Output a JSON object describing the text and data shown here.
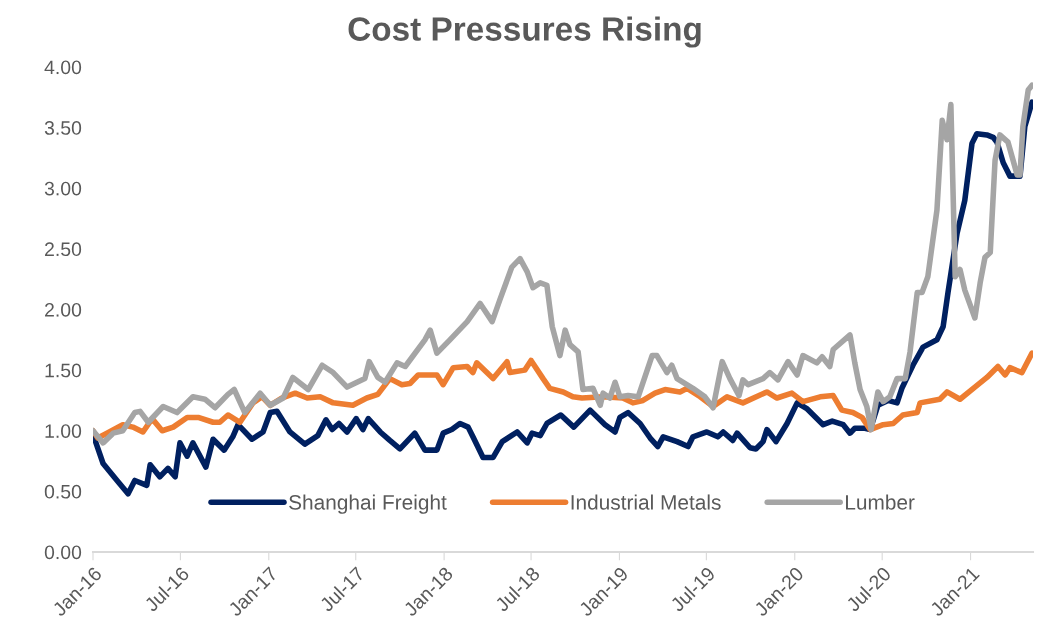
{
  "chart_data": {
    "type": "line",
    "title": "Cost Pressures Rising",
    "xlim": [
      "2016-01-01",
      "2021-05-11"
    ],
    "xticks": [
      {
        "value": "2016-01-01",
        "label": "Jan-16"
      },
      {
        "value": "2016-07-01",
        "label": "Jul-16"
      },
      {
        "value": "2017-01-01",
        "label": "Jan-17"
      },
      {
        "value": "2017-07-01",
        "label": "Jul-17"
      },
      {
        "value": "2018-01-01",
        "label": "Jan-18"
      },
      {
        "value": "2018-07-01",
        "label": "Jul-18"
      },
      {
        "value": "2019-01-01",
        "label": "Jan-19"
      },
      {
        "value": "2019-07-01",
        "label": "Jul-19"
      },
      {
        "value": "2020-01-01",
        "label": "Jan-20"
      },
      {
        "value": "2020-07-01",
        "label": "Jul-20"
      },
      {
        "value": "2021-01-01",
        "label": "Jan-21"
      }
    ],
    "ylim": [
      0,
      4
    ],
    "yticks": [
      {
        "value": 0,
        "label": "0.00"
      },
      {
        "value": 0.5,
        "label": "0.50"
      },
      {
        "value": 1,
        "label": "1.00"
      },
      {
        "value": 1.5,
        "label": "1.50"
      },
      {
        "value": 2,
        "label": "2.00"
      },
      {
        "value": 2.5,
        "label": "2.50"
      },
      {
        "value": 3,
        "label": "3.00"
      },
      {
        "value": 3.5,
        "label": "3.50"
      },
      {
        "value": 4,
        "label": "4.00"
      }
    ],
    "grid": false,
    "legend": "bottom",
    "marker": "none",
    "line_style": "solid",
    "series": [
      {
        "name": "Shanghai Freight",
        "color": "#002060",
        "x": [
          "2016-01-01",
          "2016-01-22",
          "2016-02-20",
          "2016-03-14",
          "2016-03-28",
          "2016-04-22",
          "2016-04-29",
          "2016-05-19",
          "2016-06-05",
          "2016-06-20",
          "2016-06-30",
          "2016-07-15",
          "2016-07-27",
          "2016-08-23",
          "2016-09-07",
          "2016-09-30",
          "2016-10-18",
          "2016-10-29",
          "2016-11-27",
          "2016-12-20",
          "2017-01-04",
          "2017-01-18",
          "2017-02-14",
          "2017-03-17",
          "2017-04-13",
          "2017-04-30",
          "2017-05-13",
          "2017-05-27",
          "2017-06-13",
          "2017-07-02",
          "2017-07-16",
          "2017-07-27",
          "2017-08-21",
          "2017-09-10",
          "2017-10-01",
          "2017-11-01",
          "2017-11-22",
          "2017-12-17",
          "2017-12-30",
          "2018-01-17",
          "2018-02-03",
          "2018-02-20",
          "2018-03-02",
          "2018-03-23",
          "2018-04-13",
          "2018-05-02",
          "2018-06-02",
          "2018-06-23",
          "2018-07-03",
          "2018-07-20",
          "2018-08-03",
          "2018-09-01",
          "2018-09-28",
          "2018-11-01",
          "2018-12-02",
          "2018-12-23",
          "2019-01-02",
          "2019-01-19",
          "2019-02-13",
          "2019-03-06",
          "2019-03-22",
          "2019-04-02",
          "2019-05-01",
          "2019-05-24",
          "2019-06-03",
          "2019-07-02",
          "2019-07-25",
          "2019-08-05",
          "2019-08-25",
          "2019-09-03",
          "2019-09-30",
          "2019-10-12",
          "2019-10-27",
          "2019-11-04",
          "2019-11-23",
          "2019-12-16",
          "2020-01-06",
          "2020-01-27",
          "2020-02-29",
          "2020-03-19",
          "2020-04-11",
          "2020-04-25",
          "2020-05-05",
          "2020-05-26",
          "2020-06-06",
          "2020-06-22",
          "2020-07-13",
          "2020-08-01",
          "2020-08-11",
          "2020-09-03",
          "2020-09-24",
          "2020-10-23",
          "2020-11-05",
          "2020-11-15",
          "2020-12-04",
          "2020-12-20",
          "2021-01-04",
          "2021-01-14",
          "2021-02-04",
          "2021-02-17",
          "2021-02-25",
          "2021-03-10",
          "2021-03-24",
          "2021-04-14",
          "2021-04-24",
          "2021-05-09"
        ],
        "values": [
          0.97,
          0.73,
          0.59,
          0.48,
          0.59,
          0.55,
          0.72,
          0.62,
          0.69,
          0.62,
          0.9,
          0.79,
          0.9,
          0.7,
          0.93,
          0.84,
          0.95,
          1.05,
          0.93,
          0.99,
          1.15,
          1.16,
          0.99,
          0.89,
          0.96,
          1.09,
          1.01,
          1.06,
          0.99,
          1.1,
          1.01,
          1.1,
          0.99,
          0.92,
          0.85,
          0.98,
          0.84,
          0.84,
          0.98,
          1.01,
          1.06,
          1.03,
          0.95,
          0.78,
          0.78,
          0.91,
          0.99,
          0.9,
          0.98,
          0.96,
          1.06,
          1.13,
          1.03,
          1.17,
          1.05,
          0.99,
          1.11,
          1.15,
          1.06,
          0.94,
          0.87,
          0.95,
          0.91,
          0.87,
          0.95,
          0.99,
          0.95,
          0.99,
          0.92,
          0.98,
          0.86,
          0.85,
          0.91,
          1.01,
          0.91,
          1.06,
          1.23,
          1.18,
          1.05,
          1.08,
          1.05,
          0.98,
          1.02,
          1.02,
          1.01,
          1.21,
          1.25,
          1.23,
          1.35,
          1.54,
          1.69,
          1.75,
          1.86,
          2.14,
          2.63,
          2.9,
          3.37,
          3.45,
          3.44,
          3.42,
          3.38,
          3.21,
          3.1,
          3.1,
          3.51,
          3.71
        ]
      },
      {
        "name": "Industrial Metals",
        "color": "#ed7d31",
        "x": [
          "2016-01-01",
          "2016-01-11",
          "2016-01-30",
          "2016-03-03",
          "2016-03-24",
          "2016-04-14",
          "2016-05-03",
          "2016-05-24",
          "2016-06-16",
          "2016-07-15",
          "2016-08-07",
          "2016-09-07",
          "2016-09-21",
          "2016-10-08",
          "2016-11-02",
          "2016-11-29",
          "2016-12-18",
          "2017-01-04",
          "2017-01-28",
          "2017-02-25",
          "2017-03-22",
          "2017-04-18",
          "2017-05-15",
          "2017-06-25",
          "2017-07-24",
          "2017-08-16",
          "2017-09-10",
          "2017-10-05",
          "2017-10-22",
          "2017-11-08",
          "2017-12-17",
          "2017-12-30",
          "2018-01-20",
          "2018-02-18",
          "2018-03-02",
          "2018-03-10",
          "2018-04-13",
          "2018-05-12",
          "2018-05-18",
          "2018-06-18",
          "2018-07-01",
          "2018-07-26",
          "2018-08-09",
          "2018-09-06",
          "2018-09-26",
          "2018-10-15",
          "2018-11-28",
          "2019-01-08",
          "2019-01-29",
          "2019-02-19",
          "2019-03-16",
          "2019-04-06",
          "2019-05-07",
          "2019-05-22",
          "2019-06-18",
          "2019-07-15",
          "2019-08-13",
          "2019-09-15",
          "2019-11-04",
          "2019-11-25",
          "2019-12-26",
          "2020-01-18",
          "2020-02-23",
          "2020-03-21",
          "2020-04-08",
          "2020-05-01",
          "2020-05-20",
          "2020-06-06",
          "2020-07-03",
          "2020-07-24",
          "2020-08-13",
          "2020-09-12",
          "2020-09-18",
          "2020-10-29",
          "2020-11-13",
          "2020-12-10",
          "2021-01-10",
          "2021-02-04",
          "2021-02-27",
          "2021-03-14",
          "2021-03-24",
          "2021-04-18",
          "2021-05-09"
        ],
        "values": [
          1.0,
          0.94,
          0.98,
          1.05,
          1.03,
          0.99,
          1.1,
          1.0,
          1.03,
          1.11,
          1.11,
          1.07,
          1.07,
          1.13,
          1.07,
          1.23,
          1.28,
          1.21,
          1.27,
          1.31,
          1.27,
          1.28,
          1.23,
          1.21,
          1.27,
          1.3,
          1.43,
          1.38,
          1.39,
          1.46,
          1.46,
          1.38,
          1.52,
          1.53,
          1.48,
          1.56,
          1.43,
          1.57,
          1.48,
          1.5,
          1.58,
          1.43,
          1.35,
          1.32,
          1.28,
          1.27,
          1.28,
          1.27,
          1.23,
          1.25,
          1.31,
          1.34,
          1.32,
          1.35,
          1.28,
          1.2,
          1.28,
          1.23,
          1.32,
          1.27,
          1.31,
          1.24,
          1.28,
          1.29,
          1.17,
          1.15,
          1.11,
          1.01,
          1.05,
          1.06,
          1.13,
          1.15,
          1.23,
          1.26,
          1.32,
          1.26,
          1.36,
          1.44,
          1.53,
          1.46,
          1.52,
          1.48,
          1.64
        ]
      },
      {
        "name": "Lumber",
        "color": "#a5a5a5",
        "x": [
          "2016-01-01",
          "2016-01-22",
          "2016-02-12",
          "2016-03-03",
          "2016-03-28",
          "2016-04-08",
          "2016-04-25",
          "2016-05-26",
          "2016-06-24",
          "2016-07-27",
          "2016-08-21",
          "2016-09-11",
          "2016-10-08",
          "2016-10-21",
          "2016-11-12",
          "2016-12-14",
          "2017-01-04",
          "2017-01-31",
          "2017-02-20",
          "2017-03-24",
          "2017-04-22",
          "2017-05-15",
          "2017-06-13",
          "2017-07-20",
          "2017-07-29",
          "2017-08-16",
          "2017-08-31",
          "2017-09-25",
          "2017-10-12",
          "2017-11-22",
          "2017-12-03",
          "2017-12-17",
          "2018-01-13",
          "2018-02-18",
          "2018-03-17",
          "2018-04-11",
          "2018-04-27",
          "2018-05-22",
          "2018-06-08",
          "2018-06-23",
          "2018-07-05",
          "2018-07-20",
          "2018-08-03",
          "2018-08-14",
          "2018-08-30",
          "2018-09-10",
          "2018-09-20",
          "2018-10-07",
          "2018-10-17",
          "2018-11-07",
          "2018-11-22",
          "2018-11-28",
          "2018-12-12",
          "2018-12-23",
          "2019-01-02",
          "2019-01-19",
          "2019-02-09",
          "2019-03-10",
          "2019-03-20",
          "2019-04-10",
          "2019-04-20",
          "2019-05-01",
          "2019-06-03",
          "2019-06-28",
          "2019-07-15",
          "2019-08-03",
          "2019-08-19",
          "2019-09-07",
          "2019-09-15",
          "2019-09-26",
          "2019-10-27",
          "2019-11-10",
          "2019-11-27",
          "2019-12-18",
          "2020-01-06",
          "2020-01-18",
          "2020-02-16",
          "2020-02-27",
          "2020-03-14",
          "2020-03-21",
          "2020-04-25",
          "2020-05-05",
          "2020-05-16",
          "2020-05-30",
          "2020-06-08",
          "2020-06-22",
          "2020-07-03",
          "2020-07-17",
          "2020-08-01",
          "2020-08-18",
          "2020-08-28",
          "2020-09-12",
          "2020-09-22",
          "2020-10-04",
          "2020-10-23",
          "2020-11-03",
          "2020-11-13",
          "2020-11-21",
          "2020-11-30",
          "2020-12-10",
          "2020-12-20",
          "2021-01-10",
          "2021-01-21",
          "2021-01-31",
          "2021-02-11",
          "2021-02-21",
          "2021-03-03",
          "2021-03-20",
          "2021-04-08",
          "2021-04-14",
          "2021-04-20",
          "2021-05-01",
          "2021-05-09"
        ],
        "values": [
          1.0,
          0.9,
          0.98,
          1.0,
          1.15,
          1.16,
          1.07,
          1.2,
          1.15,
          1.28,
          1.26,
          1.19,
          1.3,
          1.34,
          1.15,
          1.31,
          1.21,
          1.27,
          1.44,
          1.34,
          1.54,
          1.48,
          1.36,
          1.43,
          1.57,
          1.44,
          1.4,
          1.56,
          1.53,
          1.75,
          1.83,
          1.64,
          1.75,
          1.9,
          2.05,
          1.9,
          2.08,
          2.35,
          2.42,
          2.31,
          2.18,
          2.22,
          2.2,
          1.86,
          1.62,
          1.83,
          1.71,
          1.65,
          1.34,
          1.35,
          1.21,
          1.31,
          1.27,
          1.4,
          1.28,
          1.29,
          1.28,
          1.62,
          1.62,
          1.48,
          1.54,
          1.43,
          1.35,
          1.28,
          1.19,
          1.57,
          1.43,
          1.29,
          1.42,
          1.38,
          1.43,
          1.48,
          1.42,
          1.57,
          1.46,
          1.62,
          1.56,
          1.61,
          1.53,
          1.67,
          1.79,
          1.56,
          1.34,
          1.2,
          1.01,
          1.32,
          1.24,
          1.28,
          1.43,
          1.43,
          1.65,
          2.14,
          2.14,
          2.27,
          2.82,
          3.56,
          3.4,
          3.69,
          2.27,
          2.33,
          2.16,
          1.93,
          2.22,
          2.43,
          2.47,
          3.23,
          3.44,
          3.38,
          3.11,
          3.11,
          3.51,
          3.81,
          3.85
        ]
      }
    ]
  }
}
